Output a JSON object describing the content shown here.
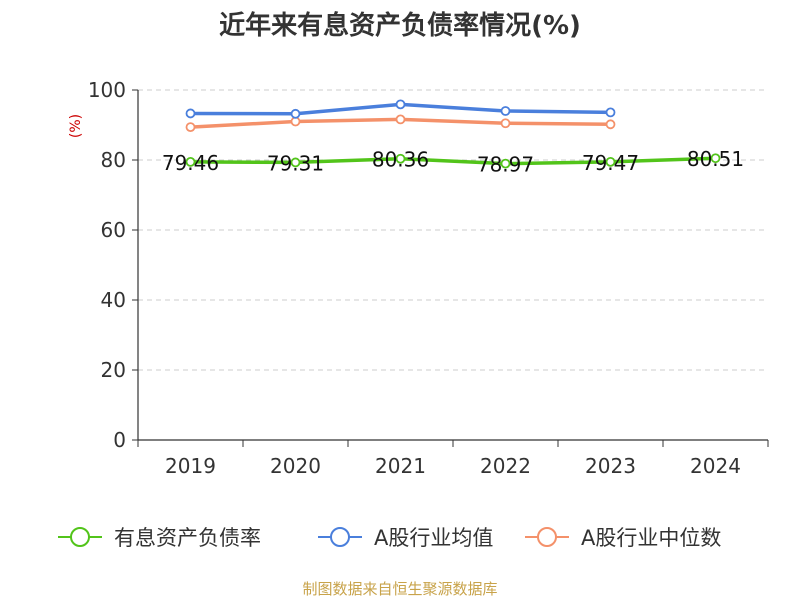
{
  "chart_data": {
    "type": "line",
    "title": "近年来有息资产负债率情况(%)",
    "ylabel": "(%)",
    "xlabel": "",
    "categories": [
      "2019",
      "2020",
      "2021",
      "2022",
      "2023",
      "2024"
    ],
    "ylim": [
      0,
      100
    ],
    "yticks": [
      0,
      20,
      40,
      60,
      80,
      100
    ],
    "grid": true,
    "legend_position": "bottom",
    "series": [
      {
        "name": "有息资产负债率",
        "color": "#52c41a",
        "values": [
          79.46,
          79.31,
          80.36,
          78.97,
          79.47,
          80.51
        ],
        "labels": [
          "79.46",
          "79.31",
          "80.36",
          "78.97",
          "79.47",
          "80.51"
        ]
      },
      {
        "name": "A股行业均值",
        "color": "#4a7fdc",
        "values": [
          93.3,
          93.2,
          95.9,
          94.0,
          93.6,
          null
        ]
      },
      {
        "name": "A股行业中位数",
        "color": "#f4916a",
        "values": [
          89.4,
          91.0,
          91.6,
          90.5,
          90.2,
          null
        ]
      }
    ]
  },
  "source": "制图数据来自恒生聚源数据库"
}
